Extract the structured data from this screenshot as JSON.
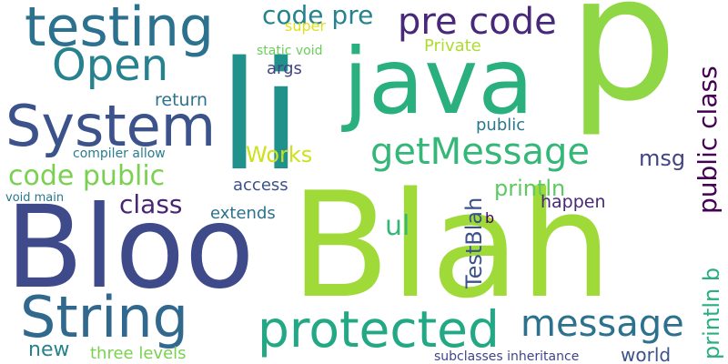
{
  "words": [
    {
      "text": "p",
      "color": "#8fd744"
    },
    {
      "text": "Blah",
      "color": "#a0da39"
    },
    {
      "text": "Bloo",
      "color": "#3e4a89"
    },
    {
      "text": "li",
      "color": "#21918c"
    },
    {
      "text": "java",
      "color": "#2ab07f"
    },
    {
      "text": "testing",
      "color": "#2c728e"
    },
    {
      "text": "System",
      "color": "#3b528b"
    },
    {
      "text": "String",
      "color": "#31688e"
    },
    {
      "text": "protected",
      "color": "#22a884"
    },
    {
      "text": "Open",
      "color": "#26828e"
    },
    {
      "text": "pre code",
      "color": "#482878"
    },
    {
      "text": "message",
      "color": "#2c728e"
    },
    {
      "text": "getMessage",
      "color": "#35b779"
    },
    {
      "text": "code pre",
      "color": "#25838e"
    },
    {
      "text": "code public",
      "color": "#7ad151"
    },
    {
      "text": "public class",
      "color": "#440154"
    },
    {
      "text": "println b",
      "color": "#2ab07f"
    },
    {
      "text": "TestBlah",
      "color": "#3b528b"
    },
    {
      "text": "Works",
      "color": "#cde11d"
    },
    {
      "text": "ul",
      "color": "#35b779"
    },
    {
      "text": "class",
      "color": "#482475"
    },
    {
      "text": "msg",
      "color": "#414487"
    },
    {
      "text": "println",
      "color": "#5ec962"
    },
    {
      "text": "extends",
      "color": "#2c728e"
    },
    {
      "text": "happen",
      "color": "#482878"
    },
    {
      "text": "new",
      "color": "#26828e"
    },
    {
      "text": "world",
      "color": "#3b528b"
    },
    {
      "text": "access",
      "color": "#3b528b"
    },
    {
      "text": "return",
      "color": "#2c728e"
    },
    {
      "text": "args",
      "color": "#414487"
    },
    {
      "text": "super",
      "color": "#dde318"
    },
    {
      "text": "Private",
      "color": "#addc30"
    },
    {
      "text": "three levels",
      "color": "#7ad151"
    },
    {
      "text": "public",
      "color": "#2a788e"
    },
    {
      "text": "static void",
      "color": "#6ccd5a"
    },
    {
      "text": "compiler allow",
      "color": "#287d8e"
    },
    {
      "text": "void main",
      "color": "#2a788e"
    },
    {
      "text": "subclasses inheritance",
      "color": "#414487"
    },
    {
      "text": "b",
      "color": "#440154"
    }
  ]
}
